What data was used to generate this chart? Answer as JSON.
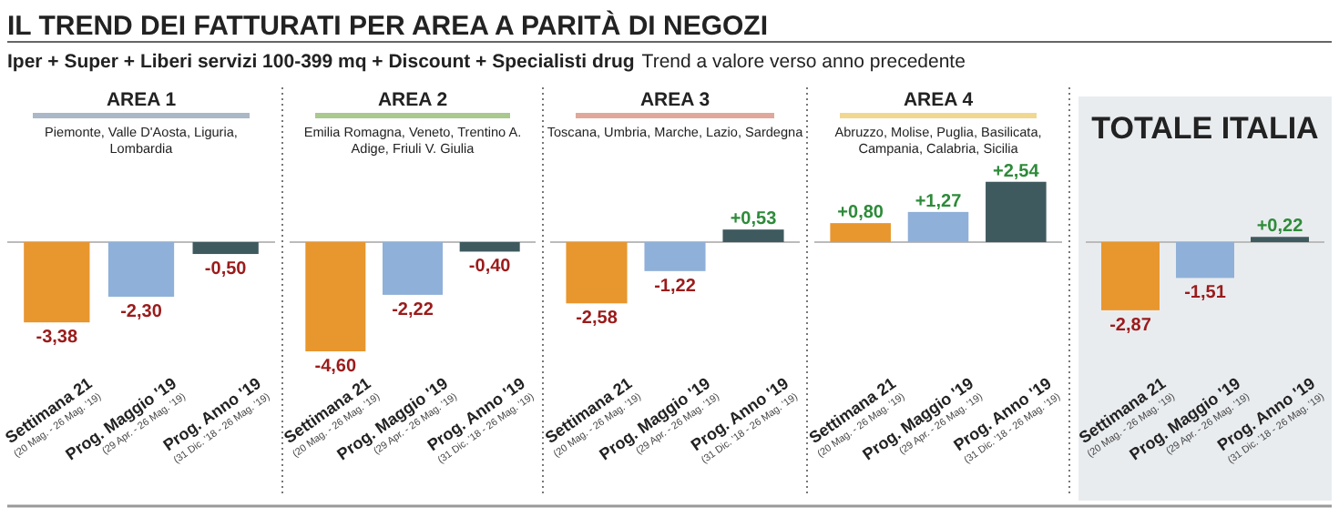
{
  "chart_data": [
    {
      "type": "other",
      "title": "IL TREND DEI FATTURATI PER AREA A PARITÀ DI NEGOZI",
      "subtitle": "Iper + Super + Liberi servizi 100-399 mq + Discount + Specialisti drug",
      "annotations": [
        "Trend a valore verso anno precedente"
      ]
    },
    {
      "type": "bar",
      "title": "AREA 1",
      "subtitle": "Piemonte, Valle D'Aosta, Liguria, Lombardia",
      "categories": [
        "Settimana 21\n(20 Mag. - 26 Mag. '19)",
        "Prog. Maggio '19\n(29 Apr. - 26 Mag. '19)",
        "Prog. Anno '19\n(31 Dic. '18 - 26 Mag. '19)"
      ],
      "values": [
        -3.38,
        -2.3,
        -0.5
      ],
      "colors": [
        "#e8962e",
        "#8fb0d8",
        "#3f5a5e"
      ],
      "value_labels": [
        "-3,38",
        "-2,30",
        "-0,50"
      ]
    },
    {
      "type": "bar",
      "title": "AREA 2",
      "subtitle": "Emilia Romagna, Veneto, Trentino A. Adige, Friuli V. Giulia",
      "categories": [
        "Settimana 21\n(20 Mag. - 26 Mag. '19)",
        "Prog. Maggio '19\n(29 Apr. - 26 Mag. '19)",
        "Prog. Anno '19\n(31 Dic. '18 - 26 Mag. '19)"
      ],
      "values": [
        -4.6,
        -2.22,
        -0.4
      ],
      "colors": [
        "#e8962e",
        "#8fb0d8",
        "#3f5a5e"
      ],
      "value_labels": [
        "-4,60",
        "-2,22",
        "-0,40"
      ]
    },
    {
      "type": "bar",
      "title": "AREA 3",
      "subtitle": "Toscana, Umbria, Marche, Lazio, Sardegna",
      "categories": [
        "Settimana 21\n(20 Mag. - 26 Mag. '19)",
        "Prog. Maggio '19\n(29 Apr. - 26 Mag. '19)",
        "Prog. Anno '19\n(31 Dic. '18 - 26 Mag. '19)"
      ],
      "values": [
        -2.58,
        -1.22,
        0.53
      ],
      "colors": [
        "#e8962e",
        "#8fb0d8",
        "#3f5a5e"
      ],
      "value_labels": [
        "-2,58",
        "-1,22",
        "+0,53"
      ]
    },
    {
      "type": "bar",
      "title": "AREA 4",
      "subtitle": "Abruzzo, Molise, Puglia, Basilicata, Campania, Calabria, Sicilia",
      "categories": [
        "Settimana 21\n(20 Mag. - 26 Mag. '19)",
        "Prog. Maggio '19\n(29 Apr. - 26 Mag. '19)",
        "Prog. Anno '19\n(31 Dic. '18 - 26 Mag. '19)"
      ],
      "values": [
        0.8,
        1.27,
        2.54
      ],
      "colors": [
        "#e8962e",
        "#8fb0d8",
        "#3f5a5e"
      ],
      "value_labels": [
        "+0,80",
        "+1,27",
        "+2,54"
      ]
    },
    {
      "type": "bar",
      "title": "TOTALE ITALIA",
      "categories": [
        "Settimana 21\n(20 Mag. - 26 Mag. '19)",
        "Prog. Maggio '19\n(29 Apr. - 26 Mag. '19)",
        "Prog. Anno '19\n(31 Dic. '18 - 26 Mag. '19)"
      ],
      "values": [
        -2.87,
        -1.51,
        0.22
      ],
      "colors": [
        "#e8962e",
        "#8fb0d8",
        "#3f5a5e"
      ],
      "value_labels": [
        "-2,87",
        "-1,51",
        "+0,22"
      ]
    }
  ]
}
